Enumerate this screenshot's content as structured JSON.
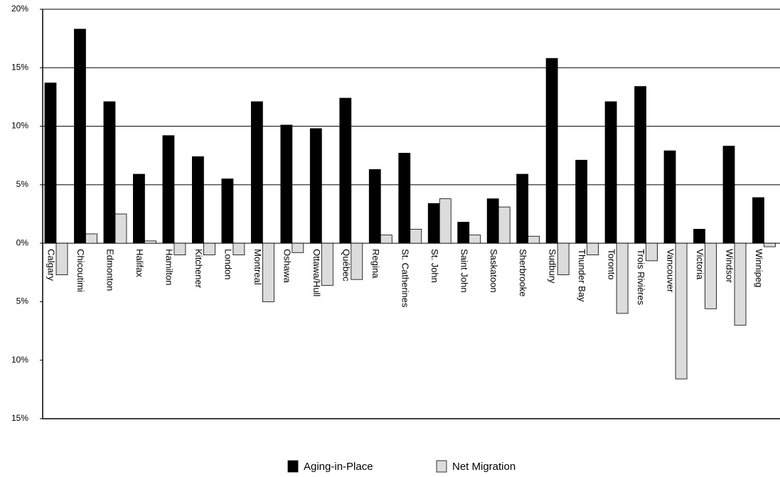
{
  "chart_data": {
    "type": "bar",
    "categories": [
      "Calgary",
      "Chicoutimi",
      "Edmonton",
      "Halifax",
      "Hamilton",
      "Kitchener",
      "London",
      "Montreal",
      "Oshawa",
      "Ottawa/Hull",
      "Québec",
      "Regina",
      "St. Catherines",
      "St. John",
      "Saint John",
      "Saskatoon",
      "Sherbrooke",
      "Sudbury",
      "Thunder Bay",
      "Toronto",
      "Trois Rivières",
      "Vancouver",
      "Victoria",
      "Windsor",
      "Winnipeg"
    ],
    "series": [
      {
        "name": "Aging-in-Place",
        "color": "#000000",
        "values": [
          13.7,
          18.3,
          12.1,
          5.9,
          9.2,
          7.4,
          5.5,
          12.1,
          10.1,
          9.8,
          12.4,
          6.3,
          7.7,
          3.4,
          1.8,
          3.8,
          5.9,
          15.8,
          7.1,
          12.1,
          13.4,
          7.9,
          1.2,
          8.3,
          3.9
        ]
      },
      {
        "name": "Net Migration",
        "color": "#dcdcdc",
        "values": [
          -2.7,
          0.8,
          2.5,
          0.2,
          -1.0,
          -1.0,
          -1.0,
          -5.0,
          -0.8,
          -3.6,
          -3.1,
          0.7,
          1.2,
          3.8,
          0.7,
          3.1,
          0.6,
          -2.7,
          -1.0,
          -6.0,
          -1.5,
          -11.6,
          -5.6,
          -7.0,
          -0.3
        ]
      }
    ],
    "ylim": [
      -15,
      20
    ],
    "yticks": [
      {
        "value": 20,
        "label": "20%"
      },
      {
        "value": 15,
        "label": "15%"
      },
      {
        "value": 10,
        "label": "10%"
      },
      {
        "value": 5,
        "label": "5%"
      },
      {
        "value": 0,
        "label": "0%"
      },
      {
        "value": -5,
        "label": "5%"
      },
      {
        "value": -10,
        "label": "10%"
      },
      {
        "value": -15,
        "label": "15%"
      }
    ],
    "grid": true,
    "legend": "bottom"
  }
}
